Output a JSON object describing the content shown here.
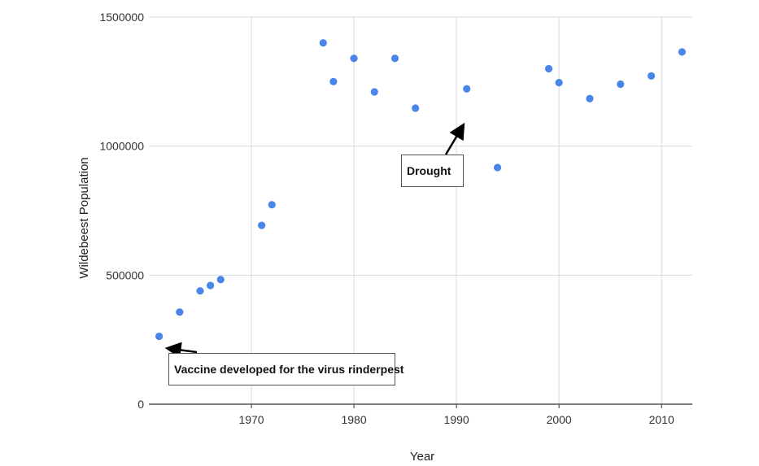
{
  "chart_data": {
    "type": "scatter",
    "title": "",
    "xlabel": "Year",
    "ylabel": "Wildebeest Population",
    "xlim": [
      1960,
      2013
    ],
    "ylim": [
      0,
      1500000
    ],
    "x_ticks": [
      "1970",
      "1980",
      "1990",
      "2000",
      "2010"
    ],
    "y_ticks": [
      "0",
      "500000",
      "1000000",
      "1500000"
    ],
    "grid": true,
    "marker_color": "#4a86e8",
    "series": [
      {
        "x": [
          1961,
          1963,
          1965,
          1966,
          1967,
          1971,
          1972,
          1977,
          1978,
          1980,
          1982,
          1984,
          1986,
          1991,
          1994,
          1999,
          2000,
          2003,
          2006,
          2009,
          2012
        ],
        "y": [
          263000,
          357000,
          439000,
          460000,
          483000,
          693000,
          773000,
          1400000,
          1250000,
          1340000,
          1210000,
          1340000,
          1147000,
          1222000,
          917000,
          1300000,
          1246000,
          1184000,
          1240000,
          1272000,
          1365000
        ]
      }
    ],
    "annotations": [
      {
        "text": "Vaccine developed for the virus rinderpest",
        "x": 1961,
        "y": 263000
      },
      {
        "text": "Drought",
        "x": 1991,
        "y": 1222000
      }
    ]
  }
}
